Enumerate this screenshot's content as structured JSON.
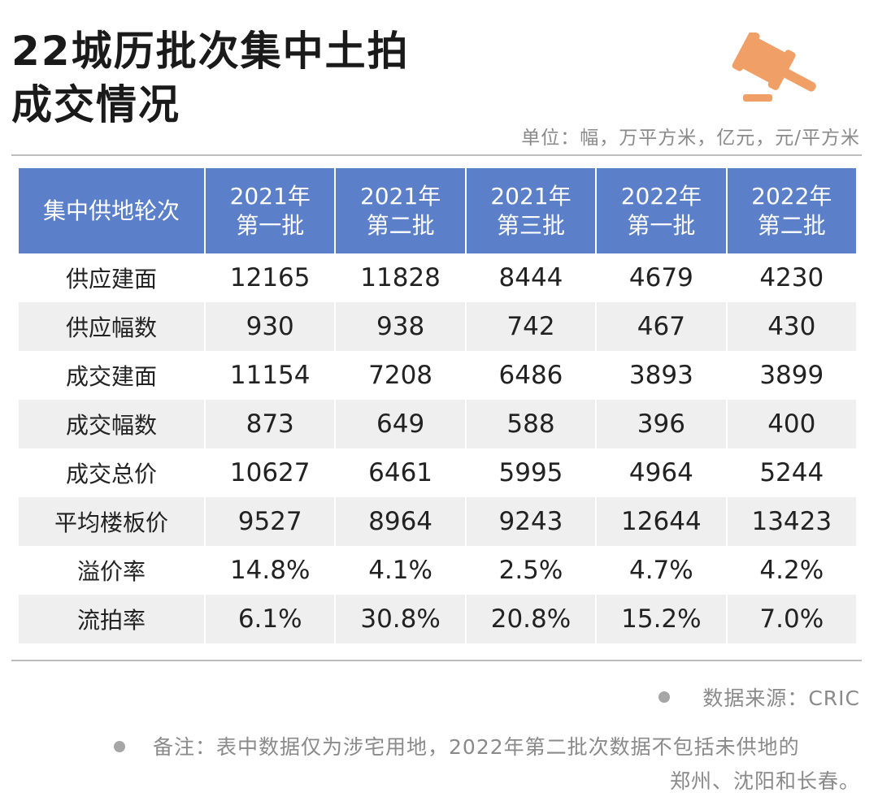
{
  "title": {
    "line1": "22城历批次集中土拍",
    "line2": "成交情况"
  },
  "unit_text": "单位：幅，万平方米，亿元，元/平方米",
  "colors": {
    "header_bg": "#5b80c9",
    "stripe": "#efefef",
    "gavel": "#f0a066"
  },
  "icon": "gavel-icon",
  "chart_data": {
    "type": "table",
    "row_header_label": "集中供地轮次",
    "columns": [
      {
        "year": "2021年",
        "batch": "第一批"
      },
      {
        "year": "2021年",
        "batch": "第二批"
      },
      {
        "year": "2021年",
        "batch": "第三批"
      },
      {
        "year": "2022年",
        "batch": "第一批"
      },
      {
        "year": "2022年",
        "batch": "第二批"
      }
    ],
    "rows": [
      {
        "label": "供应建面",
        "values": [
          "12165",
          "11828",
          "8444",
          "4679",
          "4230"
        ]
      },
      {
        "label": "供应幅数",
        "values": [
          "930",
          "938",
          "742",
          "467",
          "430"
        ]
      },
      {
        "label": "成交建面",
        "values": [
          "11154",
          "7208",
          "6486",
          "3893",
          "3899"
        ]
      },
      {
        "label": "成交幅数",
        "values": [
          "873",
          "649",
          "588",
          "396",
          "400"
        ]
      },
      {
        "label": "成交总价",
        "values": [
          "10627",
          "6461",
          "5995",
          "4964",
          "5244"
        ]
      },
      {
        "label": "平均楼板价",
        "values": [
          "9527",
          "8964",
          "9243",
          "12644",
          "13423"
        ]
      },
      {
        "label": "溢价率",
        "values": [
          "14.8%",
          "4.1%",
          "2.5%",
          "4.7%",
          "4.2%"
        ]
      },
      {
        "label": "流拍率",
        "values": [
          "6.1%",
          "30.8%",
          "20.8%",
          "15.2%",
          "7.0%"
        ]
      }
    ]
  },
  "source": "数据来源：CRIC",
  "note": {
    "line1": "备注：表中数据仅为涉宅用地，2022年第二批次数据不包括未供地的",
    "line2": "郑州、沈阳和长春。"
  }
}
